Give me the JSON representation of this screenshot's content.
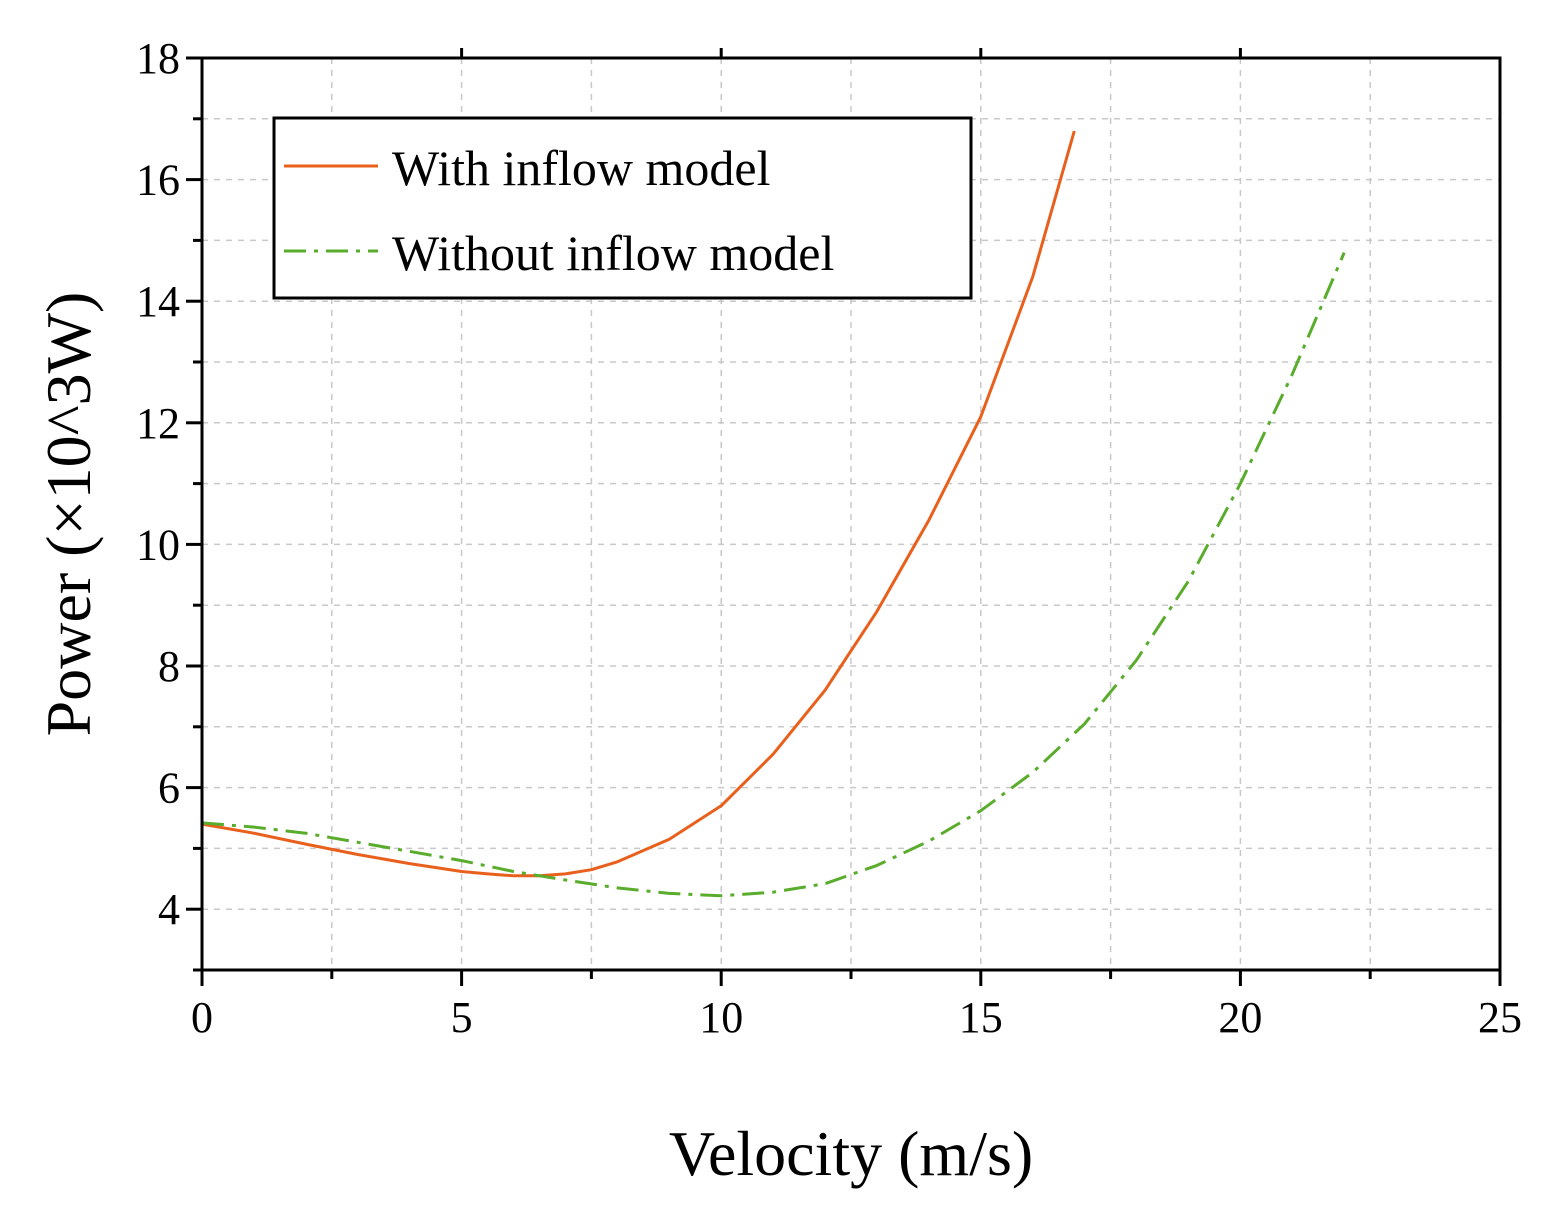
{
  "chart_data": {
    "type": "line",
    "title": "",
    "xlabel": "Velocity (m/s)",
    "ylabel": "Power (×10^3W)",
    "xlim": [
      0,
      25
    ],
    "ylim": [
      3,
      18
    ],
    "xticks": [
      0,
      5,
      10,
      15,
      20,
      25
    ],
    "yticks": [
      4,
      6,
      8,
      10,
      12,
      14,
      16,
      18
    ],
    "x_tick_labels": [
      "0",
      "5",
      "10",
      "15",
      "20",
      "25"
    ],
    "y_tick_labels": [
      "4",
      "6",
      "8",
      "10",
      "12",
      "14",
      "16",
      "18"
    ],
    "grid": true,
    "legend_position": "top-left",
    "series": [
      {
        "name": "With inflow model",
        "color": "#e8601c",
        "style": "solid",
        "x": [
          0,
          1,
          2,
          3,
          4,
          5,
          5.5,
          6,
          6.5,
          7,
          7.5,
          8,
          9,
          10,
          11,
          12,
          13,
          14,
          15,
          16,
          16.8
        ],
        "y": [
          5.4,
          5.25,
          5.07,
          4.9,
          4.75,
          4.62,
          4.58,
          4.55,
          4.55,
          4.58,
          4.65,
          4.78,
          5.15,
          5.7,
          6.55,
          7.6,
          8.9,
          10.4,
          12.1,
          14.4,
          16.8
        ]
      },
      {
        "name": "Without inflow model",
        "color": "#5aac2c",
        "style": "dashdot",
        "x": [
          0,
          1,
          2,
          3,
          4,
          5,
          6,
          7,
          8,
          9,
          10,
          11,
          12,
          13,
          14,
          15,
          16,
          17,
          18,
          19,
          20,
          21,
          22
        ],
        "y": [
          5.42,
          5.35,
          5.25,
          5.1,
          4.95,
          4.8,
          4.62,
          4.48,
          4.35,
          4.26,
          4.22,
          4.28,
          4.42,
          4.72,
          5.12,
          5.62,
          6.25,
          7.05,
          8.1,
          9.4,
          11.0,
          12.8,
          14.8
        ]
      }
    ]
  }
}
